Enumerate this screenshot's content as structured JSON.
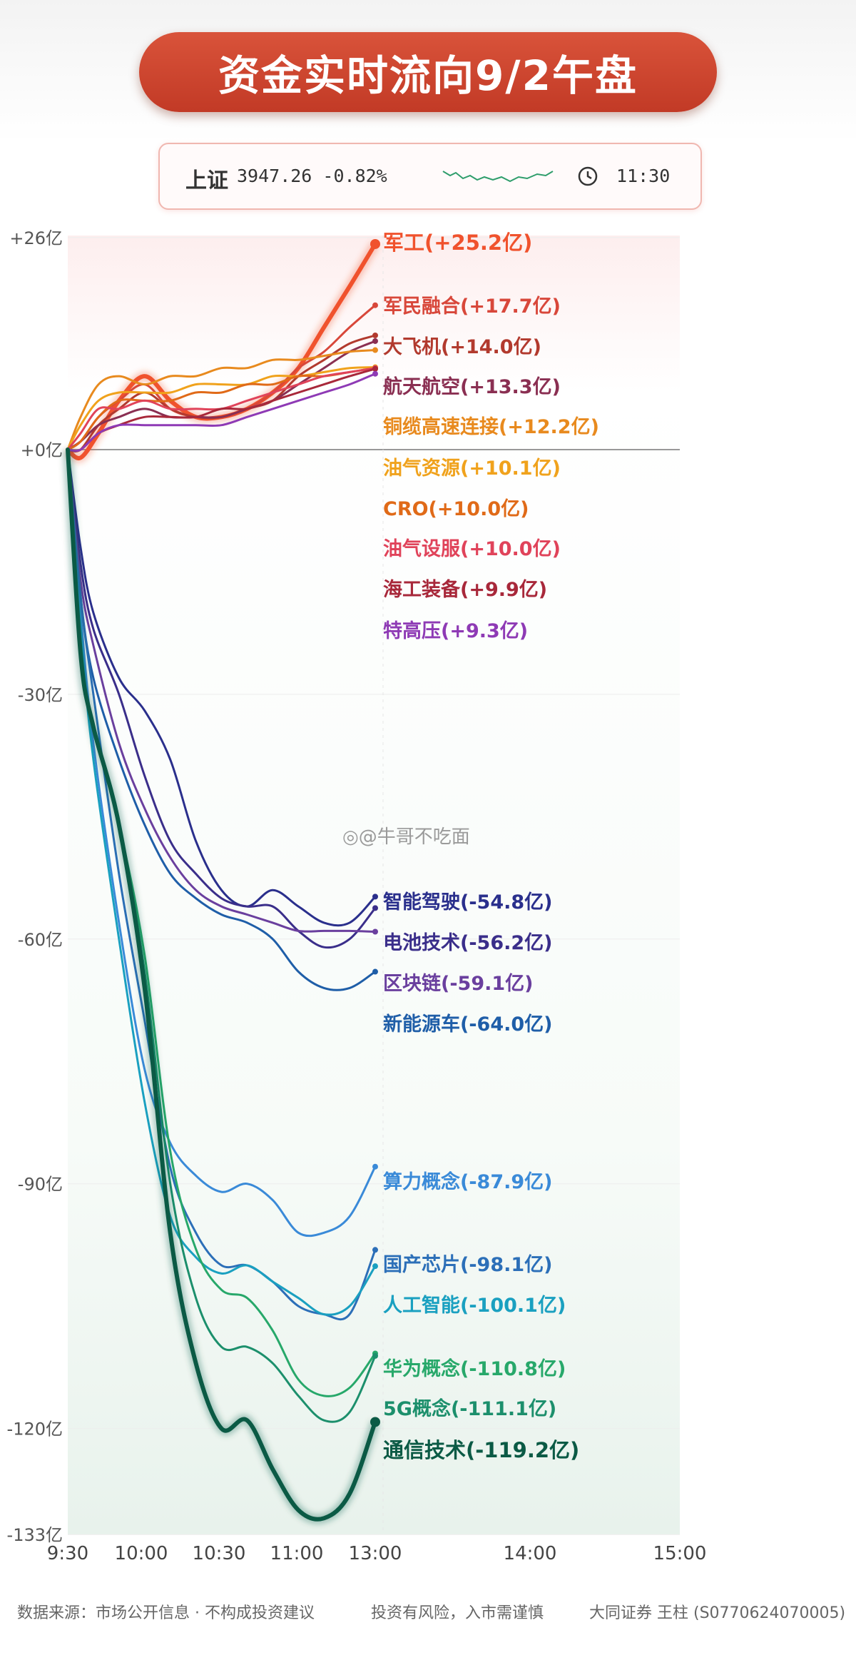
{
  "banner": {
    "title": "资金实时流向9/2午盘"
  },
  "ticker": {
    "index_name": "上证",
    "index_value": "3947.26 -0.82%",
    "time": "11:30",
    "spark_color": "#2e9d6b",
    "clock_icon": "clock-icon"
  },
  "watermark": "@牛哥不吃面",
  "footer": {
    "left": "数据来源：市场公开信息 · 不构成投资建议",
    "middle": "投资有风险，入市需谨慎",
    "right": "大同证券 王柱 (S0770624070005)"
  },
  "chart_data": {
    "type": "line",
    "title": "资金实时流向9/2午盘",
    "y_unit": "亿",
    "y_ticks": [
      26,
      0,
      -30,
      -60,
      -90,
      -120,
      -133
    ],
    "y_tick_labels": [
      "+26亿",
      "+0亿",
      "-30亿",
      "-60亿",
      "-90亿",
      "-120亿",
      "-133亿"
    ],
    "x_ticks": [
      "9:30",
      "10:00",
      "10:30",
      "11:00",
      "13:00",
      "14:00",
      "15:00"
    ],
    "ylim": [
      -133,
      26
    ],
    "zero_line": true,
    "series": [
      {
        "name": "军工",
        "label": "军工(+25.2亿)",
        "color": "#f0522d",
        "width": 6,
        "x": [
          0,
          5,
          12,
          20,
          30,
          40,
          50,
          60,
          70,
          80,
          90,
          100,
          110,
          120
        ],
        "values": [
          0,
          -1,
          2,
          6,
          9,
          6,
          4,
          4,
          5,
          7,
          10,
          15,
          20,
          25.2
        ]
      },
      {
        "name": "军民融合",
        "label": "军民融合(+17.7亿)",
        "color": "#d8473a",
        "width": 3,
        "x": [
          0,
          5,
          12,
          20,
          30,
          40,
          50,
          60,
          70,
          80,
          90,
          100,
          110,
          120
        ],
        "values": [
          0,
          1,
          4,
          6,
          8,
          5,
          4,
          4,
          5,
          7,
          10,
          12,
          15,
          17.7
        ]
      },
      {
        "name": "大飞机",
        "label": "大飞机(+14.0亿)",
        "color": "#b23a2e",
        "width": 3,
        "x": [
          0,
          5,
          12,
          20,
          30,
          40,
          50,
          60,
          70,
          80,
          90,
          100,
          110,
          120
        ],
        "values": [
          0,
          0,
          3,
          5,
          7,
          5,
          4,
          4,
          5,
          6,
          9,
          11,
          13,
          14.0
        ]
      },
      {
        "name": "航天航空",
        "label": "航天航空(+13.3亿)",
        "color": "#8a2f52",
        "width": 3,
        "x": [
          0,
          5,
          12,
          20,
          30,
          40,
          50,
          60,
          70,
          80,
          90,
          100,
          110,
          120
        ],
        "values": [
          0,
          1,
          3,
          4,
          5,
          4,
          4,
          4,
          5,
          6,
          8,
          10,
          12,
          13.3
        ]
      },
      {
        "name": "铜缆高速连接",
        "label": "铜缆高速连接(+12.2亿)",
        "color": "#e88a1e",
        "width": 3,
        "x": [
          0,
          5,
          12,
          20,
          30,
          40,
          50,
          60,
          70,
          80,
          90,
          100,
          110,
          120
        ],
        "values": [
          0,
          4,
          8,
          9,
          8,
          9,
          9,
          10,
          10,
          11,
          11,
          11.5,
          12,
          12.2
        ]
      },
      {
        "name": "油气资源",
        "label": "油气资源(+10.1亿)",
        "color": "#f0a21c",
        "width": 3,
        "x": [
          0,
          5,
          12,
          20,
          30,
          40,
          50,
          60,
          70,
          80,
          90,
          100,
          110,
          120
        ],
        "values": [
          0,
          3,
          6,
          7,
          7,
          7,
          8,
          8,
          8,
          9,
          9,
          9.5,
          10,
          10.1
        ]
      },
      {
        "name": "CRO",
        "label": "CRO(+10.0亿)",
        "color": "#e06a18",
        "width": 3,
        "x": [
          0,
          5,
          12,
          20,
          30,
          40,
          50,
          60,
          70,
          80,
          90,
          100,
          110,
          120
        ],
        "values": [
          0,
          1,
          4,
          6,
          6,
          6,
          7,
          7,
          8,
          8,
          9,
          9,
          9.5,
          10.0
        ]
      },
      {
        "name": "油气设服",
        "label": "油气设服(+10.0亿)",
        "color": "#e0435a",
        "width": 3,
        "x": [
          0,
          5,
          12,
          20,
          30,
          40,
          50,
          60,
          70,
          80,
          90,
          100,
          110,
          120
        ],
        "values": [
          0,
          2,
          5,
          5,
          6,
          5,
          5,
          5,
          6,
          7,
          8,
          9,
          9.5,
          10.0
        ]
      },
      {
        "name": "海工装备",
        "label": "海工装备(+9.9亿)",
        "color": "#a8283a",
        "width": 3,
        "x": [
          0,
          5,
          12,
          20,
          30,
          40,
          50,
          60,
          70,
          80,
          90,
          100,
          110,
          120
        ],
        "values": [
          0,
          0,
          2,
          3,
          4,
          4,
          4,
          5,
          5,
          6,
          7,
          8,
          9,
          9.9
        ]
      },
      {
        "name": "特高压",
        "label": "特高压(+9.3亿)",
        "color": "#8e3ab5",
        "width": 3,
        "x": [
          0,
          5,
          12,
          20,
          30,
          40,
          50,
          60,
          70,
          80,
          90,
          100,
          110,
          120
        ],
        "values": [
          0,
          0,
          2,
          3,
          3,
          3,
          3,
          3,
          4,
          5,
          6,
          7,
          8,
          9.3
        ]
      },
      {
        "name": "智能驾驶",
        "label": "智能驾驶(-54.8亿)",
        "color": "#2a2f8c",
        "width": 3,
        "x": [
          0,
          5,
          10,
          20,
          30,
          40,
          50,
          60,
          70,
          80,
          90,
          100,
          110,
          120
        ],
        "values": [
          0,
          -12,
          -20,
          -28,
          -32,
          -38,
          -48,
          -54,
          -56,
          -54,
          -56,
          -58,
          -58,
          -54.8
        ]
      },
      {
        "name": "电池技术",
        "label": "电池技术(-56.2亿)",
        "color": "#3a2e8a",
        "width": 3,
        "x": [
          0,
          5,
          10,
          20,
          30,
          40,
          50,
          60,
          70,
          80,
          90,
          100,
          110,
          120
        ],
        "values": [
          0,
          -14,
          -22,
          -30,
          -40,
          -48,
          -52,
          -55,
          -56,
          -56,
          -59,
          -61,
          -60,
          -56.2
        ]
      },
      {
        "name": "区块链",
        "label": "区块链(-59.1亿)",
        "color": "#6a3f9e",
        "width": 3,
        "x": [
          0,
          5,
          10,
          20,
          30,
          40,
          50,
          60,
          70,
          80,
          90,
          100,
          110,
          120
        ],
        "values": [
          0,
          -16,
          -24,
          -36,
          -44,
          -50,
          -54,
          -56,
          -57,
          -58,
          -59,
          -59,
          -59,
          -59.1
        ]
      },
      {
        "name": "新能源车",
        "label": "新能源车(-64.0亿)",
        "color": "#1f5ea8",
        "width": 3,
        "x": [
          0,
          5,
          10,
          20,
          30,
          40,
          50,
          60,
          70,
          80,
          90,
          100,
          110,
          120
        ],
        "values": [
          0,
          -18,
          -28,
          -38,
          -46,
          -52,
          -55,
          -57,
          -58,
          -60,
          -64,
          -66,
          -66,
          -64.0
        ]
      },
      {
        "name": "算力概念",
        "label": "算力概念(-87.9亿)",
        "color": "#3a8ad8",
        "width": 3,
        "x": [
          0,
          5,
          10,
          20,
          30,
          40,
          50,
          60,
          70,
          80,
          90,
          100,
          110,
          120
        ],
        "values": [
          0,
          -20,
          -36,
          -58,
          -76,
          -85,
          -89,
          -91,
          -90,
          -92,
          -96,
          -96,
          -94,
          -87.9
        ]
      },
      {
        "name": "国产芯片",
        "label": "国产芯片(-98.1亿)",
        "color": "#2c6fb8",
        "width": 3,
        "x": [
          0,
          5,
          10,
          20,
          30,
          40,
          50,
          60,
          70,
          80,
          90,
          100,
          110,
          120
        ],
        "values": [
          0,
          -18,
          -30,
          -52,
          -70,
          -88,
          -96,
          -100,
          -100,
          -102,
          -105,
          -106,
          -106,
          -98.1
        ]
      },
      {
        "name": "人工智能",
        "label": "人工智能(-100.1亿)",
        "color": "#1aa0c0",
        "width": 3,
        "x": [
          0,
          5,
          10,
          20,
          30,
          40,
          50,
          60,
          70,
          80,
          90,
          100,
          110,
          120
        ],
        "values": [
          0,
          -22,
          -38,
          -60,
          -80,
          -94,
          -99,
          -101,
          -100,
          -102,
          -104,
          -106,
          -105,
          -100.1
        ]
      },
      {
        "name": "华为概念",
        "label": "华为概念(-110.8亿)",
        "color": "#27a86a",
        "width": 3,
        "x": [
          0,
          5,
          10,
          20,
          30,
          40,
          50,
          60,
          70,
          80,
          90,
          100,
          110,
          120
        ],
        "values": [
          0,
          -25,
          -34,
          -46,
          -62,
          -86,
          -98,
          -103,
          -104,
          -108,
          -114,
          -116,
          -115,
          -110.8
        ]
      },
      {
        "name": "5G概念",
        "label": "5G概念(-111.1亿)",
        "color": "#1c8f6c",
        "width": 3,
        "x": [
          0,
          5,
          10,
          20,
          30,
          40,
          50,
          60,
          70,
          80,
          90,
          100,
          110,
          120
        ],
        "values": [
          0,
          -25,
          -34,
          -46,
          -64,
          -90,
          -104,
          -110,
          -110,
          -112,
          -116,
          -119,
          -118,
          -111.1
        ]
      },
      {
        "name": "通信技术",
        "label": "通信技术(-119.2亿)",
        "color": "#0b5a45",
        "width": 6,
        "x": [
          0,
          5,
          10,
          20,
          30,
          40,
          50,
          60,
          70,
          80,
          90,
          100,
          110,
          120
        ],
        "values": [
          0,
          -25,
          -34,
          -46,
          -66,
          -96,
          -112,
          -120,
          -119,
          -125,
          -130,
          -131,
          -128,
          -119.2
        ]
      }
    ]
  }
}
